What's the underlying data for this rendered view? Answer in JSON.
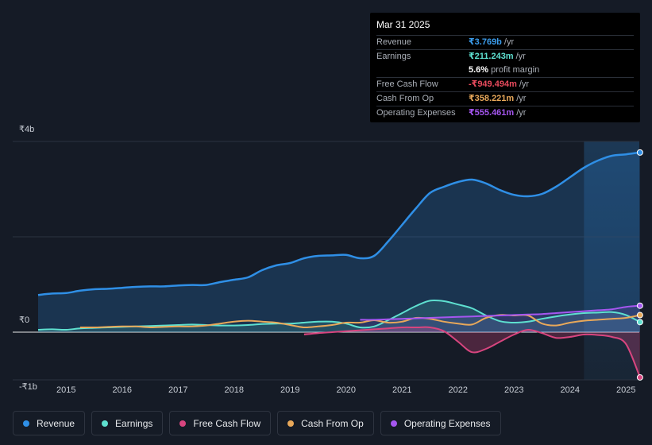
{
  "tooltip": {
    "date": "Mar 31 2025",
    "rows": [
      {
        "label": "Revenue",
        "value": "₹3.769b",
        "unit": "/yr",
        "color": "#3b9ded"
      },
      {
        "label": "Earnings",
        "value": "₹211.243m",
        "unit": "/yr",
        "color": "#5ee0d0"
      },
      {
        "label": "",
        "value": "5.6%",
        "unit": "profit margin",
        "color": "#ffffff"
      },
      {
        "label": "Free Cash Flow",
        "value": "-₹949.494m",
        "unit": "/yr",
        "color": "#e74a5c"
      },
      {
        "label": "Cash From Op",
        "value": "₹358.221m",
        "unit": "/yr",
        "color": "#e8a85a"
      },
      {
        "label": "Operating Expenses",
        "value": "₹555.461m",
        "unit": "/yr",
        "color": "#a556f0"
      }
    ]
  },
  "legend": [
    {
      "label": "Revenue",
      "color": "#2f8fe6"
    },
    {
      "label": "Earnings",
      "color": "#5ee0d0"
    },
    {
      "label": "Free Cash Flow",
      "color": "#d8457f"
    },
    {
      "label": "Cash From Op",
      "color": "#e8a85a"
    },
    {
      "label": "Operating Expenses",
      "color": "#a556f0"
    }
  ],
  "chart_data": {
    "type": "area",
    "title": "",
    "xlabel": "",
    "ylabel": "",
    "unit": "₹ billions",
    "ylim": [
      -1,
      4
    ],
    "y_tick_labels": [
      {
        "value": 4,
        "label": "₹4b"
      },
      {
        "value": 0,
        "label": "₹0"
      },
      {
        "value": -1,
        "label": "-₹1b"
      }
    ],
    "xlim": [
      2014.5,
      2025.3
    ],
    "x_tick_labels": [
      "2015",
      "2016",
      "2017",
      "2018",
      "2019",
      "2020",
      "2021",
      "2022",
      "2023",
      "2024",
      "2025"
    ],
    "highlight_start": 2024.25,
    "series": [
      {
        "name": "Revenue",
        "color": "#2f8fe6",
        "fill": true,
        "points": [
          [
            2014.5,
            0.78
          ],
          [
            2014.75,
            0.81
          ],
          [
            2015.0,
            0.82
          ],
          [
            2015.25,
            0.87
          ],
          [
            2015.5,
            0.9
          ],
          [
            2015.75,
            0.91
          ],
          [
            2016.0,
            0.93
          ],
          [
            2016.25,
            0.95
          ],
          [
            2016.5,
            0.96
          ],
          [
            2016.75,
            0.96
          ],
          [
            2017.0,
            0.98
          ],
          [
            2017.25,
            0.99
          ],
          [
            2017.5,
            0.99
          ],
          [
            2017.75,
            1.05
          ],
          [
            2018.0,
            1.1
          ],
          [
            2018.25,
            1.15
          ],
          [
            2018.5,
            1.3
          ],
          [
            2018.75,
            1.4
          ],
          [
            2019.0,
            1.45
          ],
          [
            2019.25,
            1.55
          ],
          [
            2019.5,
            1.6
          ],
          [
            2019.75,
            1.61
          ],
          [
            2020.0,
            1.62
          ],
          [
            2020.25,
            1.55
          ],
          [
            2020.5,
            1.6
          ],
          [
            2020.75,
            1.9
          ],
          [
            2021.0,
            2.25
          ],
          [
            2021.25,
            2.6
          ],
          [
            2021.5,
            2.92
          ],
          [
            2021.75,
            3.05
          ],
          [
            2022.0,
            3.15
          ],
          [
            2022.25,
            3.2
          ],
          [
            2022.5,
            3.12
          ],
          [
            2022.75,
            2.98
          ],
          [
            2023.0,
            2.88
          ],
          [
            2023.25,
            2.85
          ],
          [
            2023.5,
            2.9
          ],
          [
            2023.75,
            3.05
          ],
          [
            2024.0,
            3.25
          ],
          [
            2024.25,
            3.45
          ],
          [
            2024.5,
            3.6
          ],
          [
            2024.75,
            3.7
          ],
          [
            2025.0,
            3.73
          ],
          [
            2025.25,
            3.769
          ]
        ]
      },
      {
        "name": "Earnings",
        "color": "#5ee0d0",
        "fill": true,
        "points": [
          [
            2014.5,
            0.05
          ],
          [
            2014.75,
            0.06
          ],
          [
            2015.0,
            0.05
          ],
          [
            2015.25,
            0.08
          ],
          [
            2015.5,
            0.09
          ],
          [
            2015.75,
            0.1
          ],
          [
            2016.0,
            0.11
          ],
          [
            2016.25,
            0.12
          ],
          [
            2016.5,
            0.13
          ],
          [
            2016.75,
            0.14
          ],
          [
            2017.0,
            0.15
          ],
          [
            2017.25,
            0.16
          ],
          [
            2017.5,
            0.15
          ],
          [
            2017.75,
            0.14
          ],
          [
            2018.0,
            0.14
          ],
          [
            2018.25,
            0.15
          ],
          [
            2018.5,
            0.17
          ],
          [
            2018.75,
            0.18
          ],
          [
            2019.0,
            0.18
          ],
          [
            2019.25,
            0.2
          ],
          [
            2019.5,
            0.22
          ],
          [
            2019.75,
            0.22
          ],
          [
            2020.0,
            0.18
          ],
          [
            2020.25,
            0.1
          ],
          [
            2020.5,
            0.12
          ],
          [
            2020.75,
            0.25
          ],
          [
            2021.0,
            0.4
          ],
          [
            2021.25,
            0.55
          ],
          [
            2021.5,
            0.66
          ],
          [
            2021.75,
            0.65
          ],
          [
            2022.0,
            0.58
          ],
          [
            2022.25,
            0.5
          ],
          [
            2022.5,
            0.35
          ],
          [
            2022.75,
            0.23
          ],
          [
            2023.0,
            0.2
          ],
          [
            2023.25,
            0.22
          ],
          [
            2023.5,
            0.28
          ],
          [
            2023.75,
            0.33
          ],
          [
            2024.0,
            0.37
          ],
          [
            2024.25,
            0.4
          ],
          [
            2024.5,
            0.41
          ],
          [
            2024.75,
            0.42
          ],
          [
            2025.0,
            0.36
          ],
          [
            2025.25,
            0.211
          ]
        ]
      },
      {
        "name": "Free Cash Flow",
        "color": "#d8457f",
        "fill": true,
        "points": [
          [
            2019.25,
            -0.05
          ],
          [
            2019.5,
            -0.02
          ],
          [
            2019.75,
            0.0
          ],
          [
            2020.0,
            0.02
          ],
          [
            2020.25,
            0.04
          ],
          [
            2020.5,
            0.06
          ],
          [
            2020.75,
            0.08
          ],
          [
            2021.0,
            0.1
          ],
          [
            2021.25,
            0.1
          ],
          [
            2021.5,
            0.1
          ],
          [
            2021.75,
            0.02
          ],
          [
            2022.0,
            -0.2
          ],
          [
            2022.25,
            -0.42
          ],
          [
            2022.5,
            -0.35
          ],
          [
            2022.75,
            -0.2
          ],
          [
            2023.0,
            -0.05
          ],
          [
            2023.25,
            0.05
          ],
          [
            2023.5,
            -0.02
          ],
          [
            2023.75,
            -0.12
          ],
          [
            2024.0,
            -0.1
          ],
          [
            2024.25,
            -0.05
          ],
          [
            2024.5,
            -0.06
          ],
          [
            2024.75,
            -0.1
          ],
          [
            2025.0,
            -0.25
          ],
          [
            2025.25,
            -0.949
          ]
        ]
      },
      {
        "name": "Cash From Op",
        "color": "#e8a85a",
        "fill": false,
        "points": [
          [
            2015.25,
            0.1
          ],
          [
            2015.5,
            0.1
          ],
          [
            2015.75,
            0.11
          ],
          [
            2016.0,
            0.12
          ],
          [
            2016.25,
            0.12
          ],
          [
            2016.5,
            0.1
          ],
          [
            2016.75,
            0.11
          ],
          [
            2017.0,
            0.12
          ],
          [
            2017.25,
            0.12
          ],
          [
            2017.5,
            0.14
          ],
          [
            2017.75,
            0.18
          ],
          [
            2018.0,
            0.22
          ],
          [
            2018.25,
            0.24
          ],
          [
            2018.5,
            0.22
          ],
          [
            2018.75,
            0.2
          ],
          [
            2019.0,
            0.15
          ],
          [
            2019.25,
            0.1
          ],
          [
            2019.5,
            0.12
          ],
          [
            2019.75,
            0.15
          ],
          [
            2020.0,
            0.2
          ],
          [
            2020.25,
            0.2
          ],
          [
            2020.5,
            0.25
          ],
          [
            2020.75,
            0.2
          ],
          [
            2021.0,
            0.22
          ],
          [
            2021.25,
            0.3
          ],
          [
            2021.5,
            0.28
          ],
          [
            2021.75,
            0.22
          ],
          [
            2022.0,
            0.18
          ],
          [
            2022.25,
            0.16
          ],
          [
            2022.5,
            0.3
          ],
          [
            2022.75,
            0.36
          ],
          [
            2023.0,
            0.35
          ],
          [
            2023.25,
            0.35
          ],
          [
            2023.5,
            0.18
          ],
          [
            2023.75,
            0.14
          ],
          [
            2024.0,
            0.2
          ],
          [
            2024.25,
            0.24
          ],
          [
            2024.5,
            0.26
          ],
          [
            2024.75,
            0.28
          ],
          [
            2025.0,
            0.3
          ],
          [
            2025.25,
            0.358
          ]
        ]
      },
      {
        "name": "Operating Expenses",
        "color": "#a556f0",
        "fill": true,
        "points": [
          [
            2020.25,
            0.26
          ],
          [
            2020.5,
            0.26
          ],
          [
            2020.75,
            0.27
          ],
          [
            2021.0,
            0.28
          ],
          [
            2021.25,
            0.29
          ],
          [
            2021.5,
            0.3
          ],
          [
            2021.75,
            0.31
          ],
          [
            2022.0,
            0.32
          ],
          [
            2022.25,
            0.33
          ],
          [
            2022.5,
            0.34
          ],
          [
            2022.75,
            0.35
          ],
          [
            2023.0,
            0.36
          ],
          [
            2023.25,
            0.37
          ],
          [
            2023.5,
            0.38
          ],
          [
            2023.75,
            0.4
          ],
          [
            2024.0,
            0.42
          ],
          [
            2024.25,
            0.44
          ],
          [
            2024.5,
            0.46
          ],
          [
            2024.75,
            0.48
          ],
          [
            2025.0,
            0.53
          ],
          [
            2025.25,
            0.555
          ]
        ]
      }
    ]
  }
}
